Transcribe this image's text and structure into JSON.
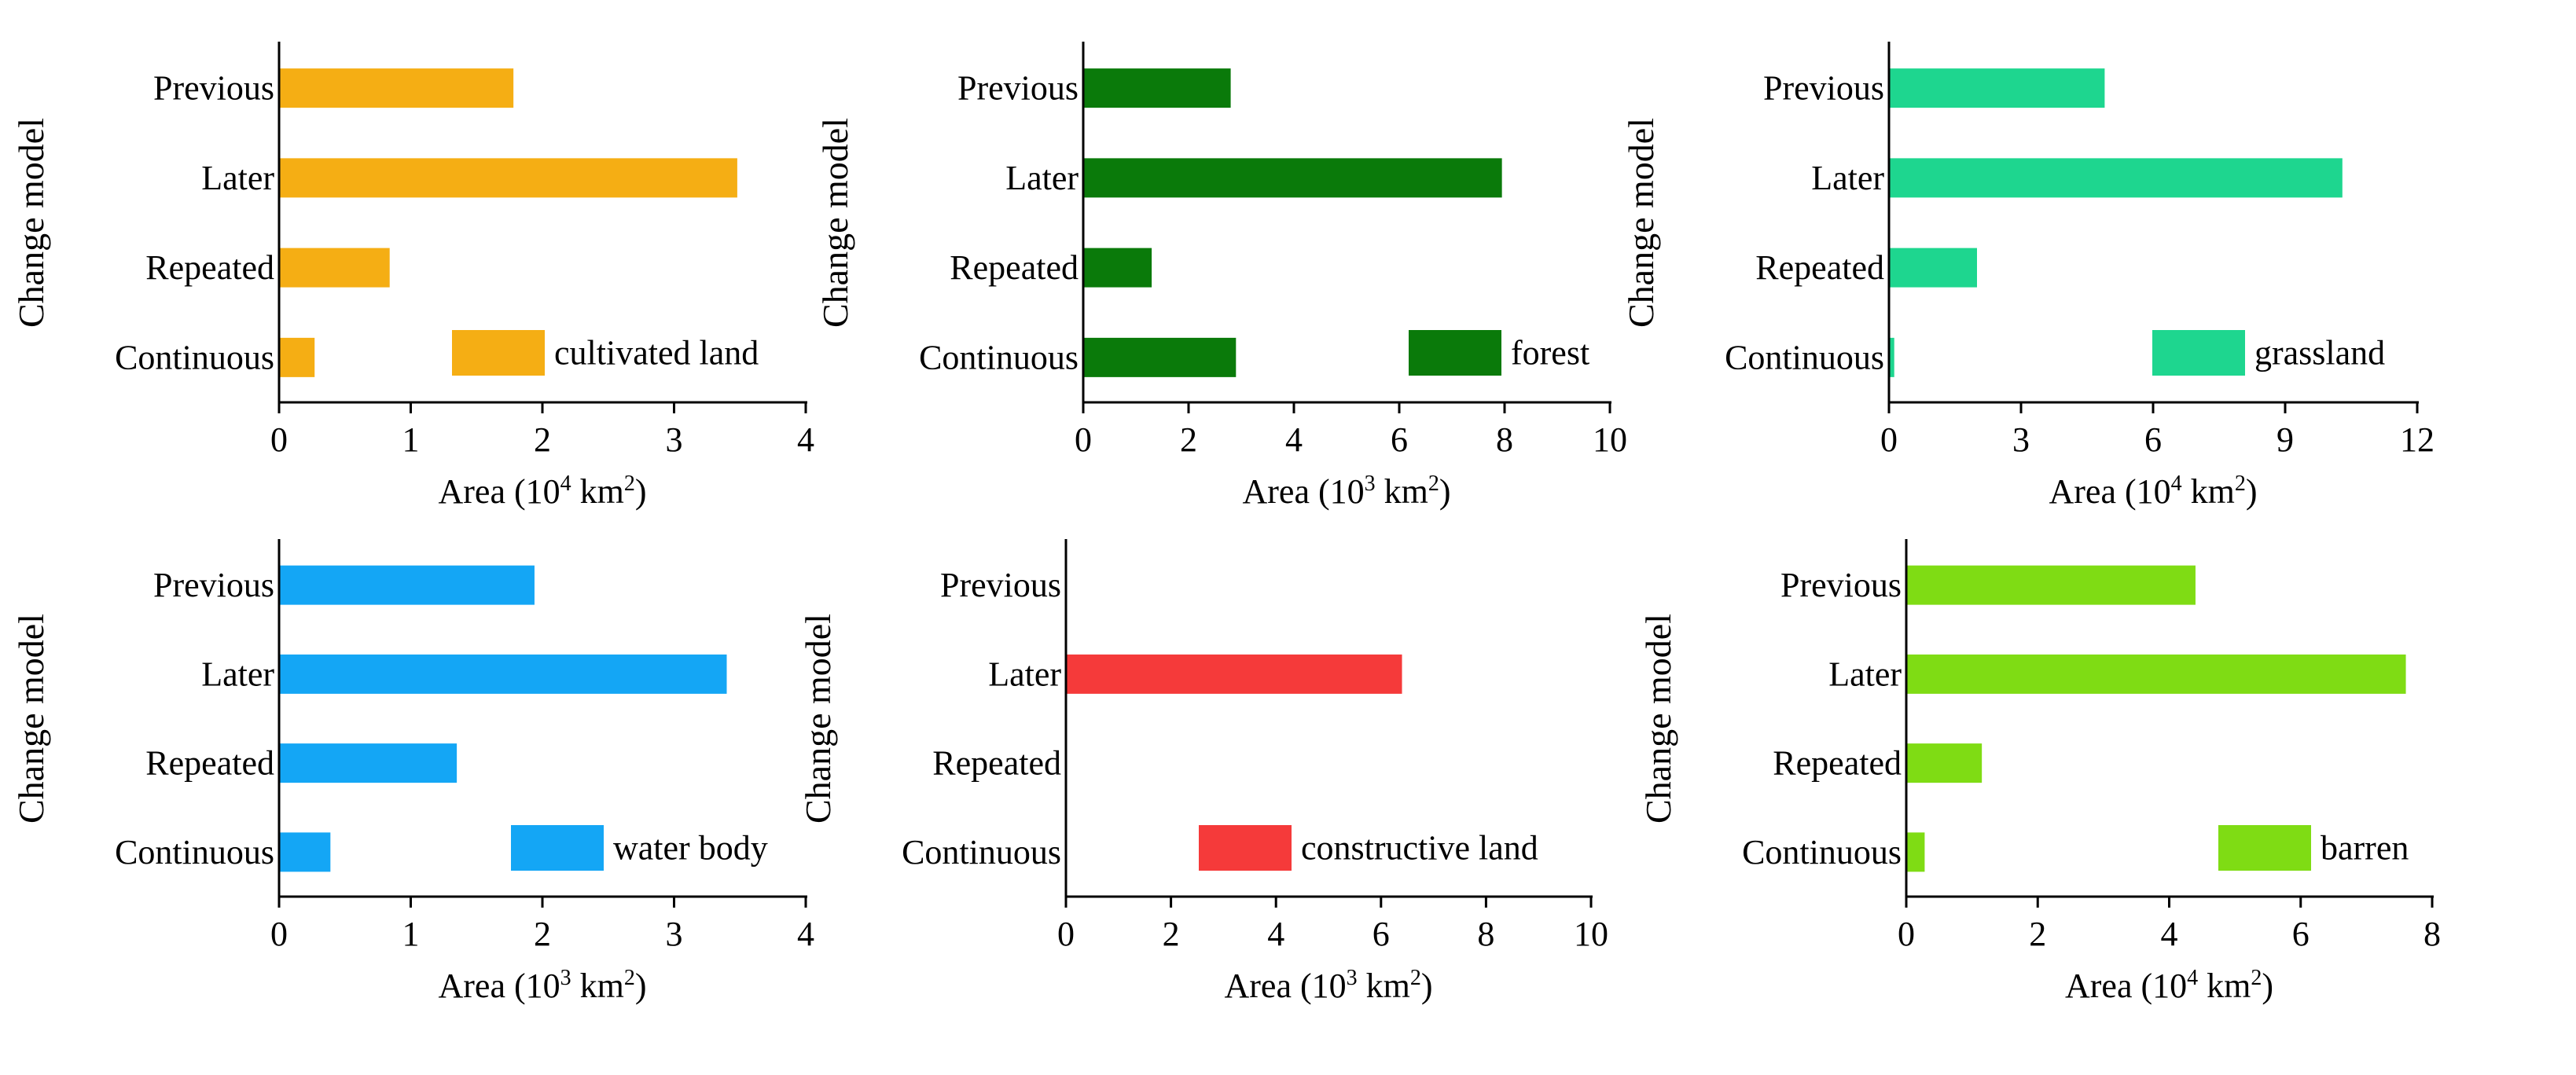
{
  "chart_data": [
    {
      "type": "bar",
      "orientation": "horizontal",
      "categories": [
        "Previous",
        "Later",
        "Repeated",
        "Continuous"
      ],
      "values": [
        1.78,
        3.48,
        0.84,
        0.27
      ],
      "ylabel": "Change model",
      "xlabel_prefix": "Area (10",
      "xlabel_exp": "4",
      "xlabel_unit": " km",
      "xlabel_unit_exp": "2",
      "xlabel_close": ")",
      "xlim": [
        0,
        4
      ],
      "xticks": [
        0,
        1,
        2,
        3,
        4
      ],
      "legend": "cultivated land",
      "color": "#f5ae14"
    },
    {
      "type": "bar",
      "orientation": "horizontal",
      "categories": [
        "Previous",
        "Later",
        "Repeated",
        "Continuous"
      ],
      "values": [
        2.8,
        7.95,
        1.3,
        2.9
      ],
      "ylabel": "Change model",
      "xlabel_prefix": "Area (10",
      "xlabel_exp": "3",
      "xlabel_unit": " km",
      "xlabel_unit_exp": "2",
      "xlabel_close": ")",
      "xlim": [
        0,
        10
      ],
      "xticks": [
        0,
        2,
        4,
        6,
        8,
        10
      ],
      "legend": "forest",
      "color": "#0a7a0a"
    },
    {
      "type": "bar",
      "orientation": "horizontal",
      "categories": [
        "Previous",
        "Later",
        "Repeated",
        "Continuous"
      ],
      "values": [
        4.9,
        10.3,
        2.0,
        0.12
      ],
      "ylabel": "Change model",
      "xlabel_prefix": "Area (10",
      "xlabel_exp": "4",
      "xlabel_unit": " km",
      "xlabel_unit_exp": "2",
      "xlabel_close": ")",
      "xlim": [
        0,
        12
      ],
      "xticks": [
        0,
        3,
        6,
        9,
        12
      ],
      "legend": "grassland",
      "color": "#1ed68f"
    },
    {
      "type": "bar",
      "orientation": "horizontal",
      "categories": [
        "Previous",
        "Later",
        "Repeated",
        "Continuous"
      ],
      "values": [
        1.94,
        3.4,
        1.35,
        0.39
      ],
      "ylabel": "Change model",
      "xlabel_prefix": "Area (10",
      "xlabel_exp": "3",
      "xlabel_unit": " km",
      "xlabel_unit_exp": "2",
      "xlabel_close": ")",
      "xlim": [
        0,
        4
      ],
      "xticks": [
        0,
        1,
        2,
        3,
        4
      ],
      "legend": "water body",
      "color": "#14a6f5"
    },
    {
      "type": "bar",
      "orientation": "horizontal",
      "categories": [
        "Previous",
        "Later",
        "Repeated",
        "Continuous"
      ],
      "values": [
        0,
        6.4,
        0,
        0
      ],
      "ylabel": "Change model",
      "xlabel_prefix": "Area (10",
      "xlabel_exp": "3",
      "xlabel_unit": " km",
      "xlabel_unit_exp": "2",
      "xlabel_close": ")",
      "xlim": [
        0,
        10
      ],
      "xticks": [
        0,
        2,
        4,
        6,
        8,
        10
      ],
      "legend": "constructive land",
      "color": "#f53a3a"
    },
    {
      "type": "bar",
      "orientation": "horizontal",
      "categories": [
        "Previous",
        "Later",
        "Repeated",
        "Continuous"
      ],
      "values": [
        4.4,
        7.6,
        1.15,
        0.28
      ],
      "ylabel": "Change model",
      "xlabel_prefix": "Area (10",
      "xlabel_exp": "4",
      "xlabel_unit": " km",
      "xlabel_unit_exp": "2",
      "xlabel_close": ")",
      "xlim": [
        0,
        8
      ],
      "xticks": [
        0,
        2,
        4,
        6,
        8
      ],
      "legend": "barren",
      "color": "#7fdc14"
    }
  ]
}
